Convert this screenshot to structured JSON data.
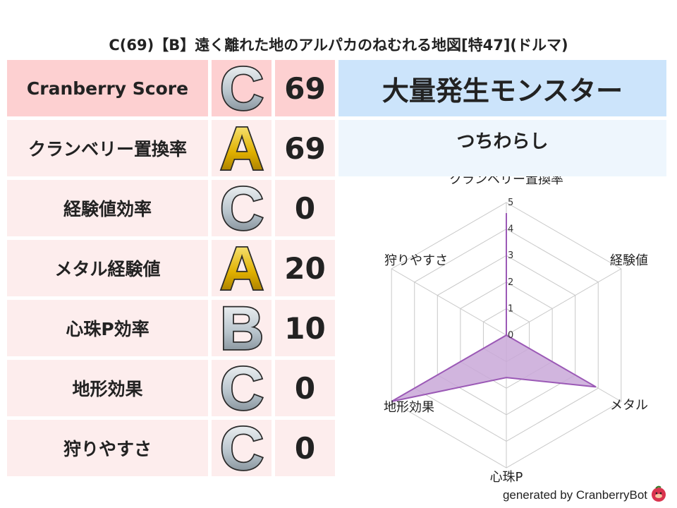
{
  "title": "C(69)【B】遠く離れた地のアルパカのねむれる地図[特47](ドルマ)",
  "table": {
    "header": {
      "label": "Cranberry Score",
      "grade": "C",
      "value": "69"
    },
    "rows": [
      {
        "label": "クランベリー置換率",
        "grade": "A",
        "value": "69"
      },
      {
        "label": "経験値効率",
        "grade": "C",
        "value": "0"
      },
      {
        "label": "メタル経験値",
        "grade": "A",
        "value": "20"
      },
      {
        "label": "心珠P効率",
        "grade": "B",
        "value": "10"
      },
      {
        "label": "地形効果",
        "grade": "C",
        "value": "0"
      },
      {
        "label": "狩りやすさ",
        "grade": "C",
        "value": "0"
      }
    ]
  },
  "monster": {
    "title": "大量発生モンスター",
    "name": "つちわらし"
  },
  "chart_data": {
    "type": "radar",
    "axes": [
      "クランベリー置換率",
      "経験値",
      "メタル",
      "心珠P",
      "地形効果",
      "狩りやすさ"
    ],
    "values": [
      4.6,
      0,
      3.9,
      1.6,
      5,
      0
    ],
    "range": [
      0,
      5
    ],
    "ticks": [
      "0",
      "1",
      "2",
      "3",
      "4",
      "5"
    ],
    "grid": true,
    "color": "#9b59b6",
    "fill": "#c9a8d8"
  },
  "colors": {
    "header_bg": "#fdd0d1",
    "row_bg": "#fdeded",
    "monster_header_bg": "#cce4fb",
    "monster_name_bg": "#eef6fd"
  },
  "footer": {
    "text": "generated by CranberryBot",
    "icon": "cranberry-bot-icon"
  }
}
